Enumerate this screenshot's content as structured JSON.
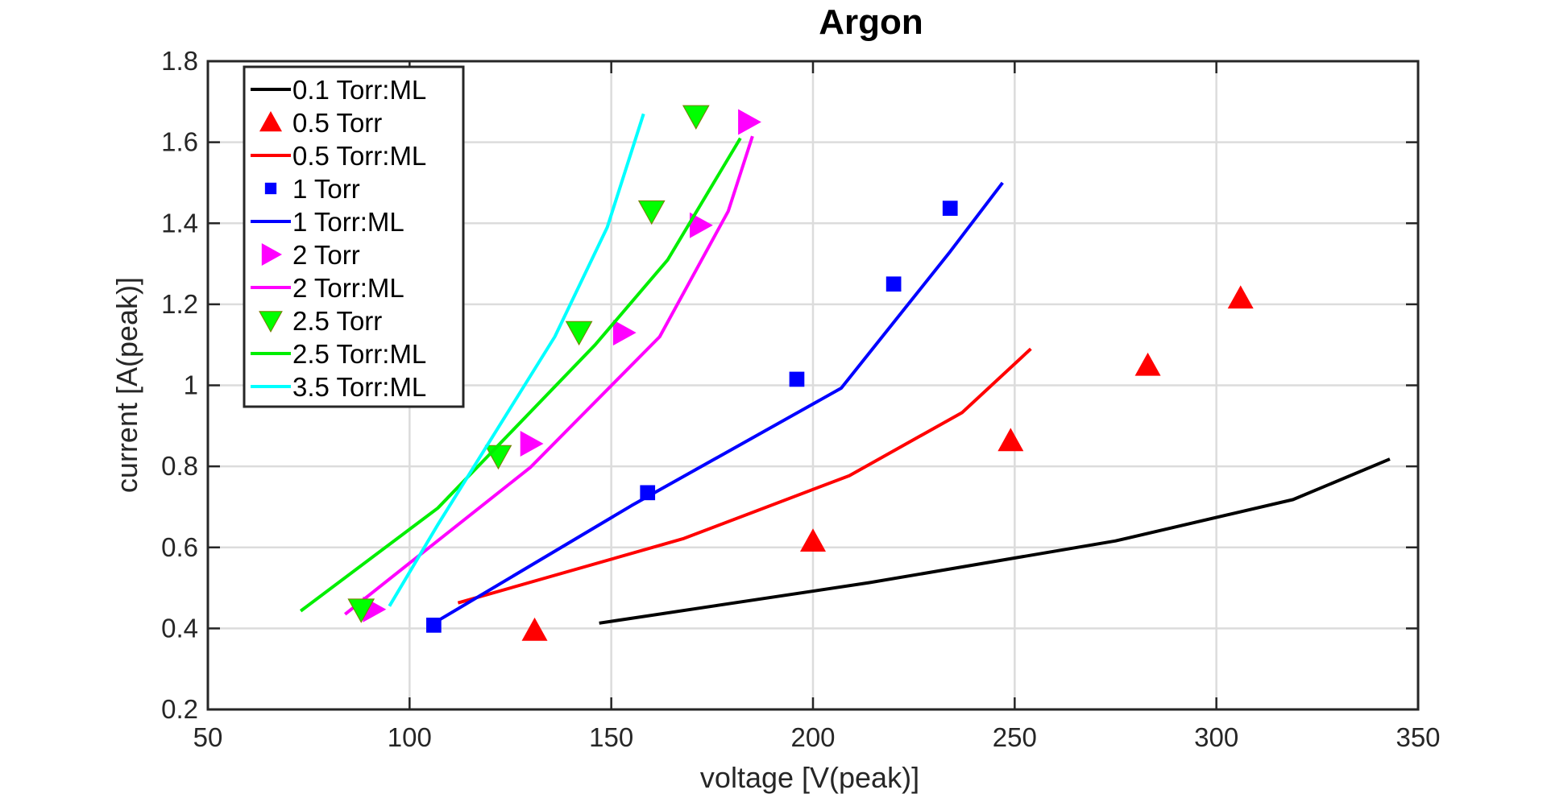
{
  "chart_data": {
    "type": "scatter",
    "title": "Argon",
    "xlabel": "voltage [V(peak)]",
    "ylabel": "current [A(peak)]",
    "xlim": [
      50,
      350
    ],
    "ylim": [
      0.2,
      1.8
    ],
    "xticks": [
      "50",
      "100",
      "150",
      "200",
      "250",
      "300",
      "350"
    ],
    "yticks": [
      "0.2",
      "0.4",
      "0.6",
      "0.8",
      "1",
      "1.2",
      "1.4",
      "1.6",
      "1.8"
    ],
    "grid": true,
    "legend_position": "top-left",
    "series": [
      {
        "name": "0.1 Torr:ML",
        "style": "line",
        "color": "#000000",
        "x": [
          147,
          214,
          275,
          319,
          343
        ],
        "y": [
          0.413,
          0.513,
          0.616,
          0.718,
          0.818
        ]
      },
      {
        "name": "0.5 Torr",
        "style": "marker",
        "marker": "triangle-up",
        "color": "#ff0000",
        "x": [
          131,
          200,
          249,
          283,
          306
        ],
        "y": [
          0.395,
          0.615,
          0.863,
          1.049,
          1.215
        ]
      },
      {
        "name": "0.5 Torr:ML",
        "style": "line",
        "color": "#ff0000",
        "x": [
          112,
          168,
          209,
          237,
          254
        ],
        "y": [
          0.463,
          0.622,
          0.777,
          0.933,
          1.09
        ]
      },
      {
        "name": "1 Torr",
        "style": "marker",
        "marker": "square",
        "color": "#0000ff",
        "x": [
          106,
          159,
          196,
          220,
          234
        ],
        "y": [
          0.408,
          0.735,
          1.015,
          1.25,
          1.437
        ]
      },
      {
        "name": "1 Torr:ML",
        "style": "line",
        "color": "#0000ff",
        "x": [
          106,
          155,
          207,
          234,
          247
        ],
        "y": [
          0.413,
          0.703,
          0.993,
          1.33,
          1.5
        ]
      },
      {
        "name": "2 Torr",
        "style": "marker",
        "marker": "triangle-right",
        "color": "#ff00ff",
        "x": [
          91,
          130,
          153,
          172,
          184
        ],
        "y": [
          0.447,
          0.856,
          1.13,
          1.395,
          1.65
        ]
      },
      {
        "name": "2 Torr:ML",
        "style": "line",
        "color": "#ff00ff",
        "x": [
          84,
          130,
          162,
          179,
          185
        ],
        "y": [
          0.435,
          0.798,
          1.12,
          1.43,
          1.615
        ]
      },
      {
        "name": "2.5 Torr",
        "style": "marker",
        "marker": "triangle-down",
        "color": "#00ff00",
        "x": [
          88,
          122,
          142,
          160,
          171
        ],
        "y": [
          0.447,
          0.826,
          1.132,
          1.43,
          1.665
        ]
      },
      {
        "name": "2.5 Torr:ML",
        "style": "line",
        "color": "#00ee00",
        "x": [
          73,
          107,
          146,
          164,
          182
        ],
        "y": [
          0.443,
          0.697,
          1.1,
          1.31,
          1.61
        ]
      },
      {
        "name": "3.5 Torr:ML",
        "style": "line",
        "color": "#00ffff",
        "x": [
          95,
          107,
          136,
          149,
          158
        ],
        "y": [
          0.455,
          0.656,
          1.12,
          1.39,
          1.67
        ]
      }
    ]
  }
}
